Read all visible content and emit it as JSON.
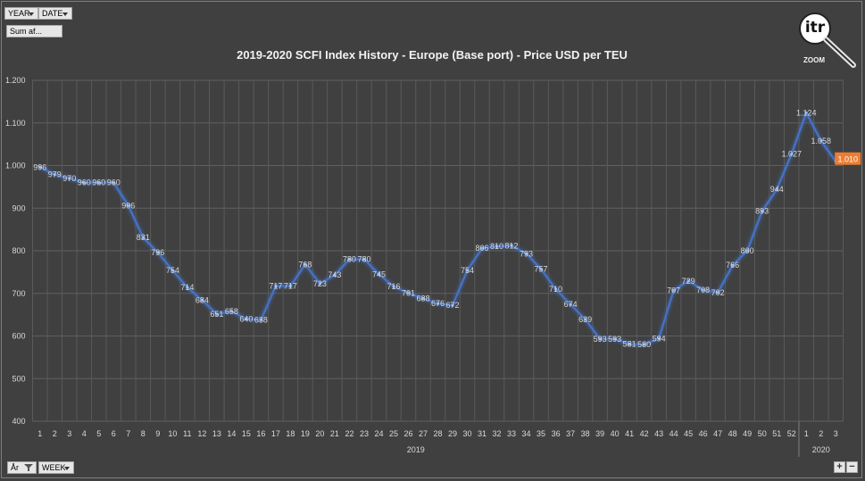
{
  "filters": {
    "year": "YEAR",
    "date": "DATE",
    "sum": "Sum af...",
    "aar": "År",
    "week": "WEEK"
  },
  "zoom": {
    "logo": "itr",
    "label": "ZOOM"
  },
  "controls": {
    "plus": "+",
    "minus": "−"
  },
  "colors": {
    "background": "#404040",
    "line": "#4472c4",
    "highlight": "#ed7d31"
  },
  "chart_data": {
    "type": "line",
    "title": "2019-2020 SCFI Index History - Europe (Base port) - Price USD per TEU",
    "ylim": [
      400,
      1200
    ],
    "yticks": [
      400,
      500,
      600,
      700,
      800,
      900,
      1000,
      1100,
      1200
    ],
    "ytick_labels": [
      "400",
      "500",
      "600",
      "700",
      "800",
      "900",
      "1.000",
      "1.100",
      "1.200"
    ],
    "grid": true,
    "x": [
      "1",
      "2",
      "3",
      "4",
      "5",
      "6",
      "7",
      "8",
      "9",
      "10",
      "11",
      "12",
      "13",
      "14",
      "15",
      "16",
      "17",
      "18",
      "19",
      "20",
      "21",
      "22",
      "23",
      "24",
      "25",
      "26",
      "27",
      "28",
      "29",
      "30",
      "31",
      "32",
      "33",
      "34",
      "35",
      "36",
      "37",
      "38",
      "39",
      "40",
      "41",
      "42",
      "43",
      "44",
      "45",
      "46",
      "47",
      "48",
      "49",
      "50",
      "51",
      "52",
      "1",
      "2",
      "3"
    ],
    "x_groups": [
      {
        "label": "2019",
        "from": 0,
        "to": 51
      },
      {
        "label": "2020",
        "from": 52,
        "to": 54
      }
    ],
    "values": [
      996,
      979,
      970,
      960,
      960,
      960,
      906,
      831,
      796,
      754,
      714,
      684,
      651,
      658,
      640,
      638,
      717,
      717,
      768,
      723,
      743,
      780,
      780,
      745,
      716,
      701,
      688,
      676,
      672,
      754,
      806,
      810,
      812,
      793,
      757,
      710,
      674,
      639,
      593,
      593,
      581,
      580,
      594,
      707,
      729,
      708,
      702,
      766,
      800,
      893,
      944,
      1027,
      1124,
      1058,
      1010
    ],
    "labels": [
      "996",
      "979",
      "970",
      "960",
      "960",
      "960",
      "906",
      "831",
      "796",
      "754",
      "714",
      "684",
      "651",
      "658",
      "640",
      "638",
      "717",
      "717",
      "768",
      "723",
      "743",
      "780",
      "780",
      "745",
      "716",
      "701",
      "688",
      "676",
      "672",
      "754",
      "806",
      "810",
      "812",
      "793",
      "757",
      "710",
      "674",
      "639",
      "593",
      "593",
      "581",
      "580",
      "594",
      "707",
      "729",
      "708",
      "702",
      "766",
      "800",
      "893",
      "944",
      "1.027",
      "1.124",
      "1.058",
      "1.010"
    ],
    "highlight_index": 54
  }
}
